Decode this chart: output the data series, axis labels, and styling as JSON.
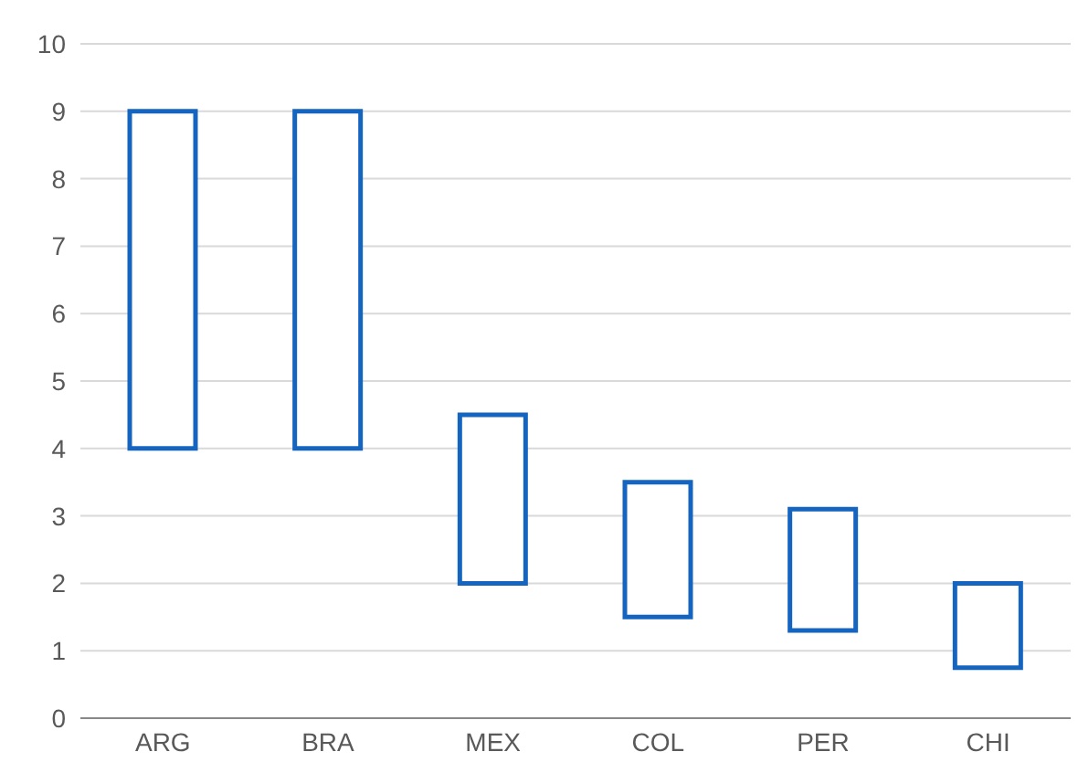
{
  "chart_data": {
    "type": "bar",
    "categories": [
      "ARG",
      "BRA",
      "MEX",
      "COL",
      "PER",
      "CHI"
    ],
    "base": [
      4,
      4,
      2,
      1.5,
      1.3,
      0.75
    ],
    "values": [
      5,
      5,
      2.5,
      2,
      1.8,
      1.25
    ],
    "color": "#1565c0",
    "ylim": [
      0,
      10
    ],
    "yticks": [
      0,
      1,
      2,
      3,
      4,
      5,
      6,
      7,
      8,
      9,
      10
    ],
    "grid": "y"
  }
}
